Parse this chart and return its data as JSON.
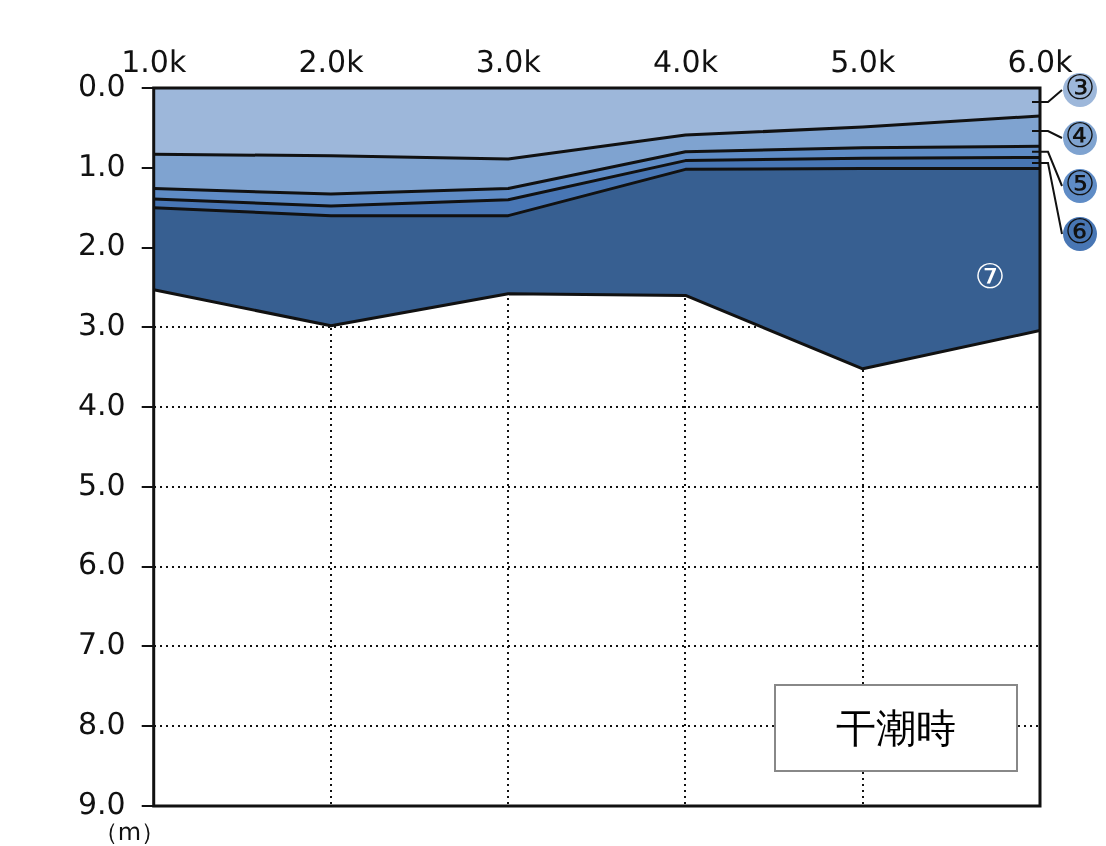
{
  "chart_data": {
    "type": "area",
    "stacked": true,
    "ylabel": "（m）",
    "x": [
      1000,
      2000,
      3000,
      4000,
      5000,
      6000
    ],
    "xlim": [
      1000,
      6000
    ],
    "xticks": [
      {
        "value": 1000,
        "label": "1.0k"
      },
      {
        "value": 2000,
        "label": "2.0k"
      },
      {
        "value": 3000,
        "label": "3.0k"
      },
      {
        "value": 4000,
        "label": "4.0k"
      },
      {
        "value": 5000,
        "label": "5.0k"
      },
      {
        "value": 6000,
        "label": "6.0k"
      }
    ],
    "ylim": [
      9,
      0
    ],
    "yticks": [
      {
        "value": 0,
        "label": "0.0"
      },
      {
        "value": 1,
        "label": "1.0"
      },
      {
        "value": 2,
        "label": "2.0"
      },
      {
        "value": 3,
        "label": "3.0"
      },
      {
        "value": 4,
        "label": "4.0"
      },
      {
        "value": 5,
        "label": "5.0"
      },
      {
        "value": 6,
        "label": "6.0"
      },
      {
        "value": 7,
        "label": "7.0"
      },
      {
        "value": 8,
        "label": "8.0"
      },
      {
        "value": 9,
        "label": "9.0"
      }
    ],
    "series": [
      {
        "name": "③",
        "color": "#9db7da",
        "values": [
          0.83,
          0.85,
          0.89,
          0.59,
          0.49,
          0.35
        ]
      },
      {
        "name": "④",
        "color": "#7fa3d0",
        "values": [
          0.43,
          0.48,
          0.37,
          0.21,
          0.26,
          0.38
        ]
      },
      {
        "name": "⑤",
        "color": "#5f8cc6",
        "values": [
          0.13,
          0.15,
          0.14,
          0.11,
          0.13,
          0.14
        ]
      },
      {
        "name": "⑥",
        "color": "#4876b4",
        "values": [
          0.11,
          0.12,
          0.2,
          0.11,
          0.13,
          0.14
        ]
      },
      {
        "name": "⑦",
        "color": "#375f91",
        "values": [
          1.03,
          1.38,
          0.98,
          1.58,
          2.51,
          2.03
        ]
      }
    ],
    "grid": true,
    "legend": "right",
    "annotations": [
      "干潮時"
    ]
  }
}
